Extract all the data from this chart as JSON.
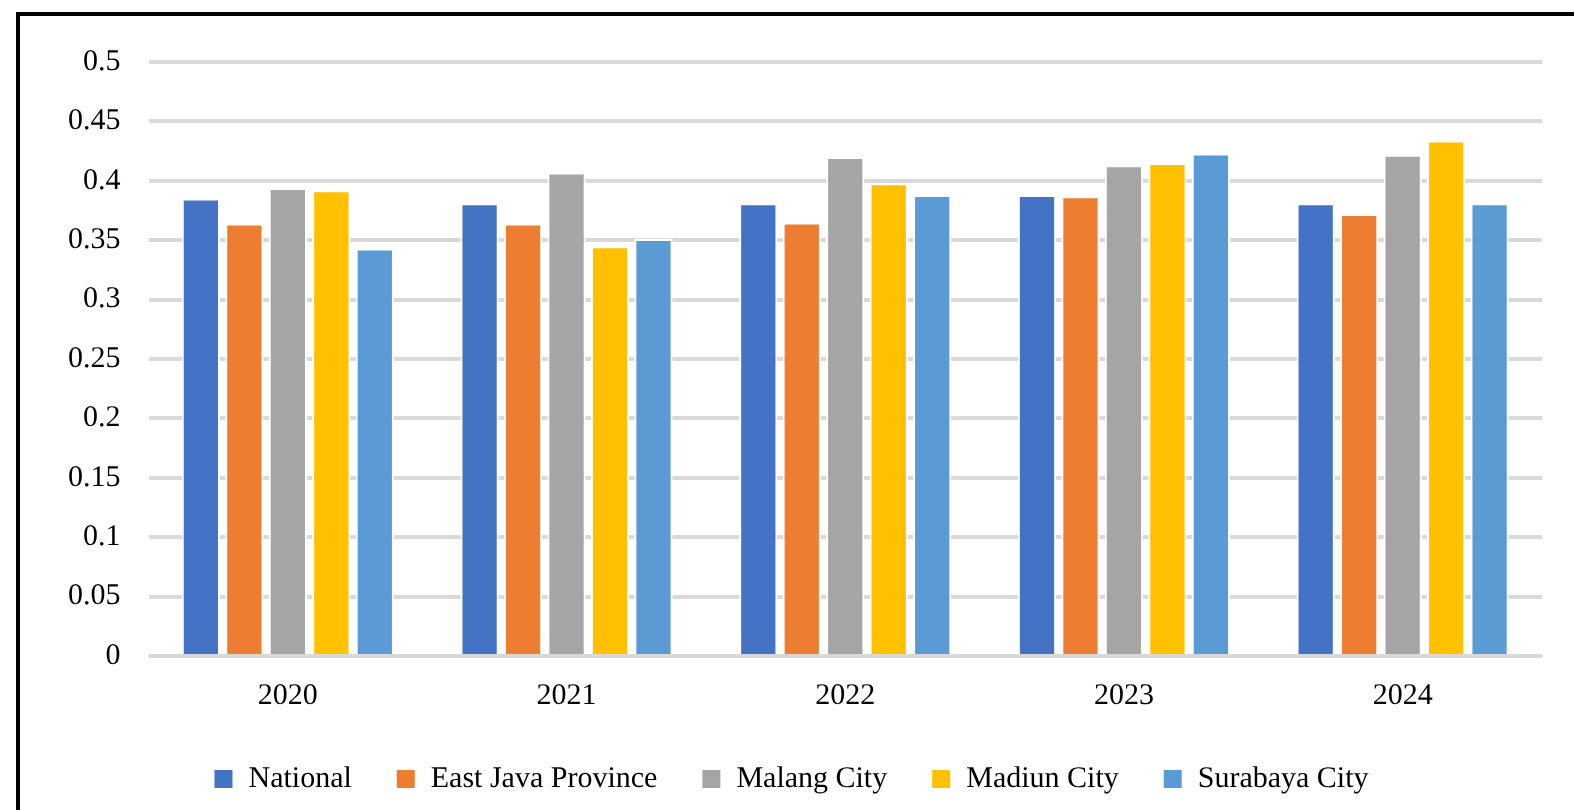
{
  "chart_data": {
    "type": "bar",
    "categories": [
      "2020",
      "2021",
      "2022",
      "2023",
      "2024"
    ],
    "series": [
      {
        "name": "National",
        "color": "#4472c4",
        "values": [
          0.385,
          0.381,
          0.381,
          0.388,
          0.381
        ]
      },
      {
        "name": "East Java Province",
        "color": "#ed7d31",
        "values": [
          0.364,
          0.364,
          0.365,
          0.387,
          0.372
        ]
      },
      {
        "name": "Malang City",
        "color": "#a5a5a5",
        "values": [
          0.394,
          0.407,
          0.42,
          0.413,
          0.422
        ]
      },
      {
        "name": "Madiun City",
        "color": "#ffc000",
        "values": [
          0.392,
          0.345,
          0.398,
          0.415,
          0.434
        ]
      },
      {
        "name": "Surabaya City",
        "color": "#5b9bd5",
        "values": [
          0.343,
          0.351,
          0.388,
          0.423,
          0.381
        ]
      }
    ],
    "ylim": [
      0,
      0.5
    ],
    "yticks": [
      0,
      0.05,
      0.1,
      0.15,
      0.2,
      0.25,
      0.3,
      0.35,
      0.4,
      0.45,
      0.5
    ],
    "grid": "y",
    "legend": "bottom"
  }
}
